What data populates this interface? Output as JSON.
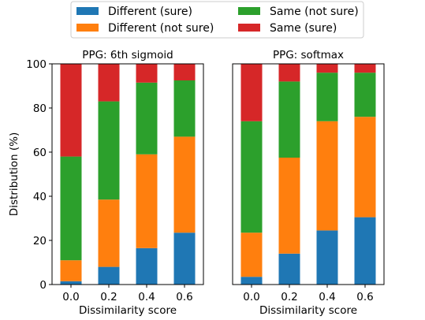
{
  "colors": {
    "different_sure": "#1f77b4",
    "different_not_sure": "#ff7f0e",
    "same_not_sure": "#2ca02c",
    "same_sure": "#d62728"
  },
  "legend": {
    "placement": "top-center",
    "columns": 2,
    "entries": [
      {
        "key": "different_sure",
        "label": "Different (sure)"
      },
      {
        "key": "different_not_sure",
        "label": "Different (not sure)"
      },
      {
        "key": "same_not_sure",
        "label": "Same (not sure)"
      },
      {
        "key": "same_sure",
        "label": "Same (sure)"
      }
    ]
  },
  "chart_data": [
    {
      "type": "bar",
      "stacked": true,
      "title": "PPG: 6th sigmoid",
      "xlabel": "Dissimilarity score",
      "ylabel": "Distribution (%)",
      "ylim": [
        0,
        100
      ],
      "yticks": [
        "0",
        "20",
        "40",
        "60",
        "80",
        "100"
      ],
      "categories": [
        "0.0",
        "0.2",
        "0.4",
        "0.6"
      ],
      "grid": false,
      "series": [
        {
          "name": "Different (sure)",
          "key": "different_sure",
          "values": [
            1.5,
            8,
            16.5,
            23.5
          ]
        },
        {
          "name": "Different (not sure)",
          "key": "different_not_sure",
          "values": [
            9.5,
            30.5,
            42.5,
            43.5
          ]
        },
        {
          "name": "Same (not sure)",
          "key": "same_not_sure",
          "values": [
            47,
            44.5,
            32.5,
            25.5
          ]
        },
        {
          "name": "Same (sure)",
          "key": "same_sure",
          "values": [
            42,
            17,
            8.5,
            7.5
          ]
        }
      ]
    },
    {
      "type": "bar",
      "stacked": true,
      "title": "PPG: softmax",
      "xlabel": "Dissimilarity score",
      "ylabel": "",
      "ylim": [
        0,
        100
      ],
      "yticks": [],
      "categories": [
        "0.0",
        "0.2",
        "0.4",
        "0.6"
      ],
      "grid": false,
      "series": [
        {
          "name": "Different (sure)",
          "key": "different_sure",
          "values": [
            3.5,
            14,
            24.5,
            30.5
          ]
        },
        {
          "name": "Different (not sure)",
          "key": "different_not_sure",
          "values": [
            20,
            43.5,
            49.5,
            45.5
          ]
        },
        {
          "name": "Same (not sure)",
          "key": "same_not_sure",
          "values": [
            50.5,
            34.5,
            22,
            20
          ]
        },
        {
          "name": "Same (sure)",
          "key": "same_sure",
          "values": [
            26,
            8,
            4,
            4
          ]
        }
      ]
    }
  ]
}
